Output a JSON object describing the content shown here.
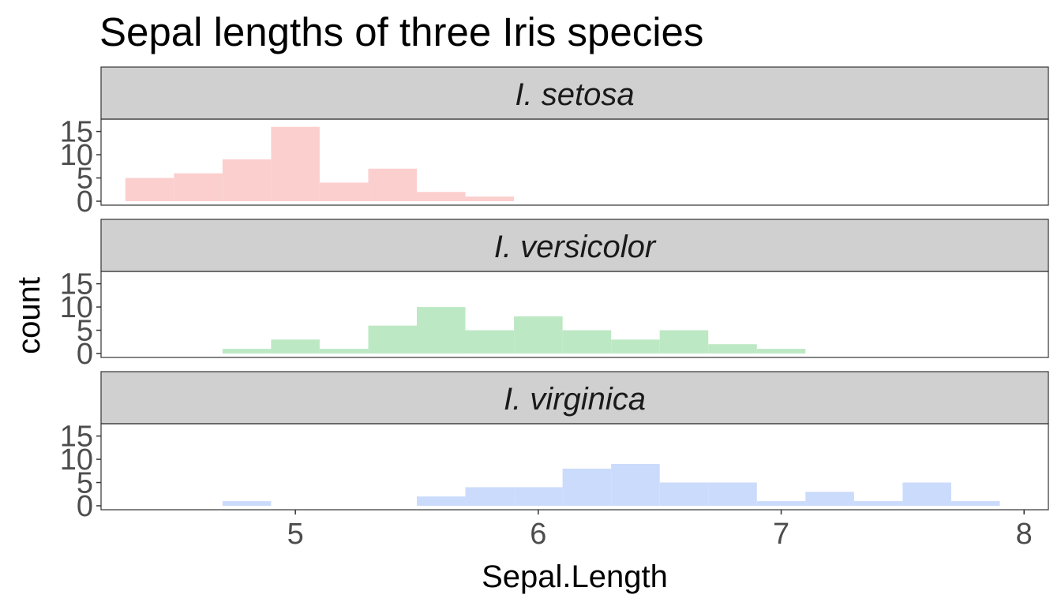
{
  "chart_data": {
    "type": "bar",
    "title": "Sepal lengths of three Iris species",
    "xlabel": "Sepal.Length",
    "ylabel": "count",
    "xlim": [
      4.2,
      8.1
    ],
    "ylim": [
      0,
      16.8
    ],
    "x_ticks": [
      5,
      6,
      7,
      8
    ],
    "y_ticks": [
      0,
      5,
      10,
      15
    ],
    "bin_width": 0.2,
    "grid": false,
    "legend": "none",
    "facets": [
      {
        "name": "I. setosa",
        "color": "#fccfcf",
        "bins": [
          {
            "x0": 4.3,
            "x1": 4.5,
            "count": 5
          },
          {
            "x0": 4.5,
            "x1": 4.7,
            "count": 6
          },
          {
            "x0": 4.7,
            "x1": 4.9,
            "count": 9
          },
          {
            "x0": 4.9,
            "x1": 5.1,
            "count": 16
          },
          {
            "x0": 5.1,
            "x1": 5.3,
            "count": 4
          },
          {
            "x0": 5.3,
            "x1": 5.5,
            "count": 7
          },
          {
            "x0": 5.5,
            "x1": 5.7,
            "count": 2
          },
          {
            "x0": 5.7,
            "x1": 5.9,
            "count": 1
          }
        ]
      },
      {
        "name": "I. versicolor",
        "color": "#bde8c4",
        "bins": [
          {
            "x0": 4.7,
            "x1": 4.9,
            "count": 1
          },
          {
            "x0": 4.9,
            "x1": 5.1,
            "count": 3
          },
          {
            "x0": 5.1,
            "x1": 5.3,
            "count": 1
          },
          {
            "x0": 5.3,
            "x1": 5.5,
            "count": 6
          },
          {
            "x0": 5.5,
            "x1": 5.7,
            "count": 10
          },
          {
            "x0": 5.7,
            "x1": 5.9,
            "count": 5
          },
          {
            "x0": 5.9,
            "x1": 6.1,
            "count": 8
          },
          {
            "x0": 6.1,
            "x1": 6.3,
            "count": 5
          },
          {
            "x0": 6.3,
            "x1": 6.5,
            "count": 3
          },
          {
            "x0": 6.5,
            "x1": 6.7,
            "count": 5
          },
          {
            "x0": 6.7,
            "x1": 6.9,
            "count": 2
          },
          {
            "x0": 6.9,
            "x1": 7.1,
            "count": 1
          }
        ]
      },
      {
        "name": "I. virginica",
        "color": "#cbdbfc",
        "bins": [
          {
            "x0": 4.7,
            "x1": 4.9,
            "count": 1
          },
          {
            "x0": 5.5,
            "x1": 5.7,
            "count": 2
          },
          {
            "x0": 5.7,
            "x1": 5.9,
            "count": 4
          },
          {
            "x0": 5.9,
            "x1": 6.1,
            "count": 4
          },
          {
            "x0": 6.1,
            "x1": 6.3,
            "count": 8
          },
          {
            "x0": 6.3,
            "x1": 6.5,
            "count": 9
          },
          {
            "x0": 6.5,
            "x1": 6.7,
            "count": 5
          },
          {
            "x0": 6.7,
            "x1": 6.9,
            "count": 5
          },
          {
            "x0": 6.9,
            "x1": 7.1,
            "count": 1
          },
          {
            "x0": 7.1,
            "x1": 7.3,
            "count": 3
          },
          {
            "x0": 7.3,
            "x1": 7.5,
            "count": 1
          },
          {
            "x0": 7.5,
            "x1": 7.7,
            "count": 5
          },
          {
            "x0": 7.7,
            "x1": 7.9,
            "count": 1
          }
        ]
      }
    ]
  }
}
